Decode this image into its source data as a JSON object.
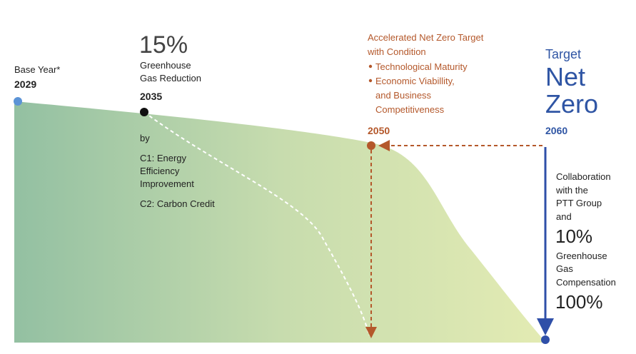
{
  "base": {
    "label": "Base Year*",
    "year": "2029"
  },
  "step_2035": {
    "percent": "15%",
    "label_lines": [
      "Greenhouse",
      "Gas Reduction"
    ],
    "year": "2035",
    "by": "by",
    "c1_lines": [
      "C1: Energy",
      "Efficiency",
      "Improvement"
    ],
    "c2": "C2: Carbon Credit"
  },
  "accelerated": {
    "title_lines": [
      "Accelerated Net Zero Target",
      "with Condition"
    ],
    "bullets": [
      [
        "Technological Maturity"
      ],
      [
        "Economic Viabillity,",
        "and Business",
        "Competitiveness"
      ]
    ],
    "year": "2050"
  },
  "target": {
    "label": "Target",
    "net": "Net",
    "zero": "Zero",
    "year": "2060",
    "lines": [
      "Collaboration",
      "with the",
      "PTT Group",
      "and"
    ],
    "percent_1": "10%",
    "lines_2": [
      "Greenhouse",
      "Gas",
      "Compensation"
    ],
    "percent_2": "100%"
  }
}
